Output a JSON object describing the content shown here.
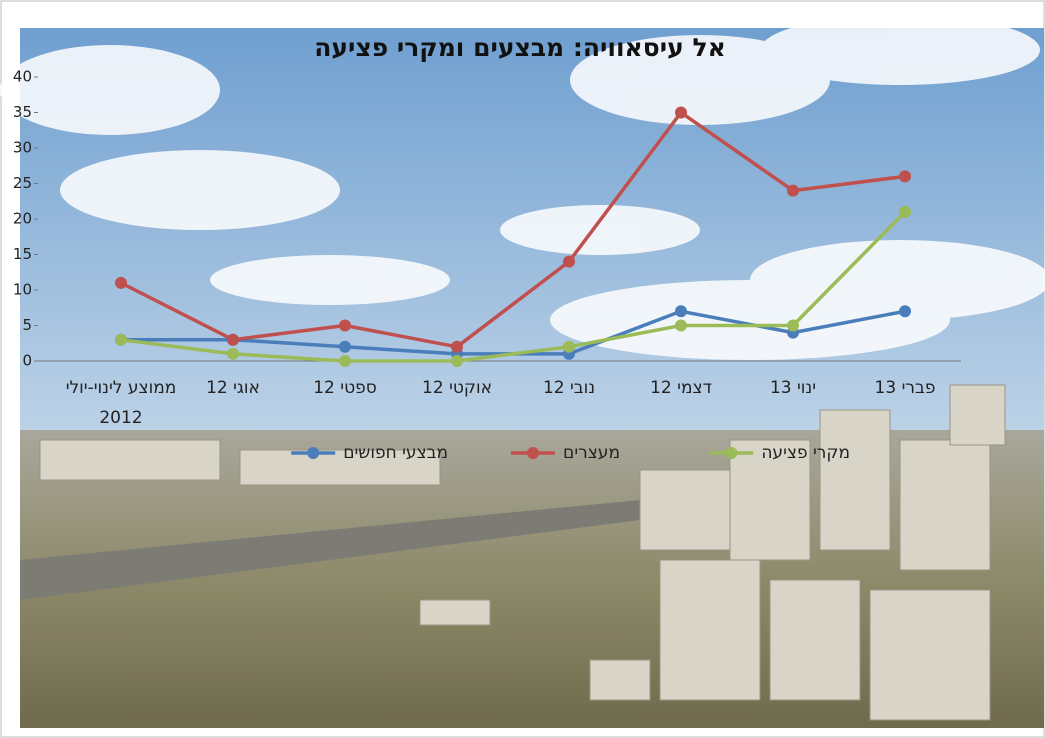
{
  "chart_data": {
    "type": "line",
    "title": "אל עיסאוויה: מבצעים ומקרי פציעה",
    "categories": [
      "ממוצע לינוי-יולי 2012",
      "אוגי 12",
      "ספטי 12",
      "אוקטי 12",
      "נובי 12",
      "דצמי 12",
      "ינוי 13",
      "פברי 13"
    ],
    "series": [
      {
        "name": "מבצעי חפושים",
        "color": "#4a7ebb",
        "values": [
          3,
          3,
          2,
          1,
          1,
          7,
          4,
          7
        ]
      },
      {
        "name": "מעצרים",
        "color": "#c0504d",
        "values": [
          11,
          3,
          5,
          2,
          14,
          35,
          24,
          26
        ]
      },
      {
        "name": "מקרי פציעה",
        "color": "#9bbb59",
        "values": [
          3,
          1,
          0,
          0,
          2,
          5,
          5,
          21
        ]
      }
    ],
    "ylim": [
      0,
      40
    ],
    "yticks": [
      0,
      5,
      10,
      15,
      20,
      25,
      30,
      35,
      40
    ],
    "grid": false
  }
}
